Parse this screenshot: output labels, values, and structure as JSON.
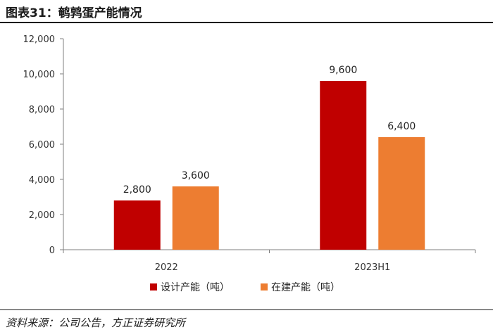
{
  "header": {
    "title": "图表31：鹌鹑蛋产能情况"
  },
  "footer": {
    "source": "资料来源：公司公告，方正证券研究所"
  },
  "chart_data": {
    "type": "bar",
    "title": "图表31：鹌鹑蛋产能情况",
    "categories": [
      "2022",
      "2023H1"
    ],
    "series": [
      {
        "name": "设计产能（吨）",
        "values": [
          2800,
          9600
        ],
        "color": "#c00000"
      },
      {
        "name": "在建产能（吨）",
        "values": [
          3600,
          6400
        ],
        "color": "#ed7d31"
      }
    ],
    "ylim": [
      0,
      12000
    ],
    "yticks": [
      0,
      2000,
      4000,
      6000,
      8000,
      10000,
      12000
    ],
    "xlabel": "",
    "ylabel": "",
    "grid": false,
    "legend": "bottom"
  }
}
